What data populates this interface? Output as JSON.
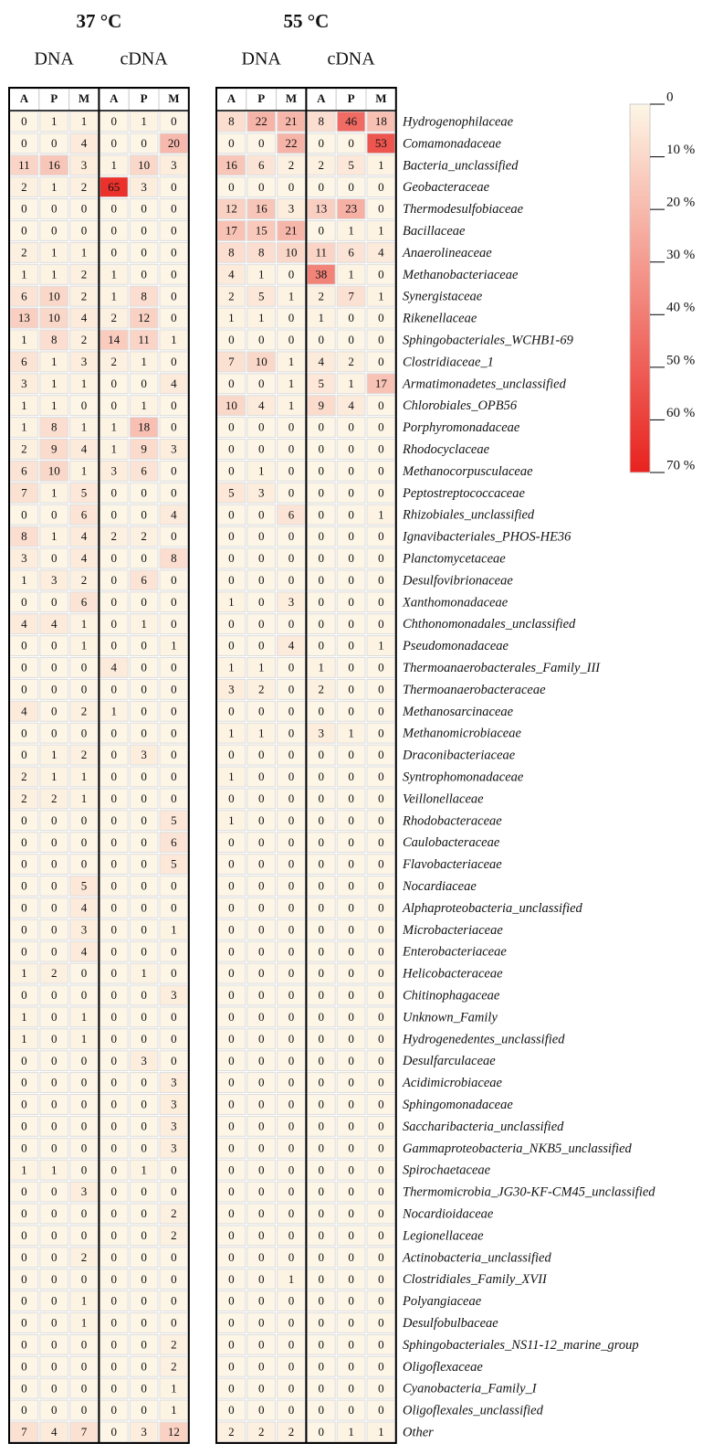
{
  "table": {
    "conditions": [
      "37 °C",
      "55 °C"
    ],
    "groups": [
      "DNA",
      "cDNA",
      "DNA",
      "cDNA"
    ],
    "column_headers": [
      "A",
      "P",
      "M",
      "A",
      "P",
      "M"
    ],
    "rows": [
      {
        "name": "Hydrogenophilaceae",
        "v37": [
          0,
          1,
          1,
          0,
          1,
          0
        ],
        "v55": [
          8,
          22,
          21,
          8,
          46,
          18
        ]
      },
      {
        "name": "Comamonadaceae",
        "v37": [
          0,
          0,
          4,
          0,
          0,
          20
        ],
        "v55": [
          0,
          0,
          22,
          0,
          0,
          53
        ]
      },
      {
        "name": "Bacteria_unclassified",
        "v37": [
          11,
          16,
          3,
          1,
          10,
          3
        ],
        "v55": [
          16,
          6,
          2,
          2,
          5,
          1
        ]
      },
      {
        "name": "Geobacteraceae",
        "v37": [
          2,
          1,
          2,
          65,
          3,
          0
        ],
        "v55": [
          0,
          0,
          0,
          0,
          0,
          0
        ]
      },
      {
        "name": "Thermodesulfobiaceae",
        "v37": [
          0,
          0,
          0,
          0,
          0,
          0
        ],
        "v55": [
          12,
          16,
          3,
          13,
          23,
          0
        ]
      },
      {
        "name": "Bacillaceae",
        "v37": [
          0,
          0,
          0,
          0,
          0,
          0
        ],
        "v55": [
          17,
          15,
          21,
          0,
          1,
          1
        ]
      },
      {
        "name": "Anaerolineaceae",
        "v37": [
          2,
          1,
          1,
          0,
          0,
          0
        ],
        "v55": [
          8,
          8,
          10,
          11,
          6,
          4
        ]
      },
      {
        "name": "Methanobacteriaceae",
        "v37": [
          1,
          1,
          2,
          1,
          0,
          0
        ],
        "v55": [
          4,
          1,
          0,
          38,
          1,
          0
        ]
      },
      {
        "name": "Synergistaceae",
        "v37": [
          6,
          10,
          2,
          1,
          8,
          0
        ],
        "v55": [
          2,
          5,
          1,
          2,
          7,
          1
        ]
      },
      {
        "name": "Rikenellaceae",
        "v37": [
          13,
          10,
          4,
          2,
          12,
          0
        ],
        "v55": [
          1,
          1,
          0,
          1,
          0,
          0
        ]
      },
      {
        "name": "Sphingobacteriales_WCHB1-69",
        "v37": [
          1,
          8,
          2,
          14,
          11,
          1
        ],
        "v55": [
          0,
          0,
          0,
          0,
          0,
          0
        ]
      },
      {
        "name": "Clostridiaceae_1",
        "v37": [
          6,
          1,
          3,
          2,
          1,
          0
        ],
        "v55": [
          7,
          10,
          1,
          4,
          2,
          0
        ]
      },
      {
        "name": "Armatimonadetes_unclassified",
        "v37": [
          3,
          1,
          1,
          0,
          0,
          4
        ],
        "v55": [
          0,
          0,
          1,
          5,
          1,
          17
        ]
      },
      {
        "name": "Chlorobiales_OPB56",
        "v37": [
          1,
          1,
          0,
          0,
          1,
          0
        ],
        "v55": [
          10,
          4,
          1,
          9,
          4,
          0
        ]
      },
      {
        "name": "Porphyromonadaceae",
        "v37": [
          1,
          8,
          1,
          1,
          18,
          0
        ],
        "v55": [
          0,
          0,
          0,
          0,
          0,
          0
        ]
      },
      {
        "name": "Rhodocyclaceae",
        "v37": [
          2,
          9,
          4,
          1,
          9,
          3
        ],
        "v55": [
          0,
          0,
          0,
          0,
          0,
          0
        ]
      },
      {
        "name": "Methanocorpusculaceae",
        "v37": [
          6,
          10,
          1,
          3,
          6,
          0
        ],
        "v55": [
          0,
          1,
          0,
          0,
          0,
          0
        ]
      },
      {
        "name": "Peptostreptococcaceae",
        "v37": [
          7,
          1,
          5,
          0,
          0,
          0
        ],
        "v55": [
          5,
          3,
          0,
          0,
          0,
          0
        ]
      },
      {
        "name": "Rhizobiales_unclassified",
        "v37": [
          0,
          0,
          6,
          0,
          0,
          4
        ],
        "v55": [
          0,
          0,
          6,
          0,
          0,
          1
        ]
      },
      {
        "name": "Ignavibacteriales_PHOS-HE36",
        "v37": [
          8,
          1,
          4,
          2,
          2,
          0
        ],
        "v55": [
          0,
          0,
          0,
          0,
          0,
          0
        ]
      },
      {
        "name": "Planctomycetaceae",
        "v37": [
          3,
          0,
          4,
          0,
          0,
          8
        ],
        "v55": [
          0,
          0,
          0,
          0,
          0,
          0
        ]
      },
      {
        "name": "Desulfovibrionaceae",
        "v37": [
          1,
          3,
          2,
          0,
          6,
          0
        ],
        "v55": [
          0,
          0,
          0,
          0,
          0,
          0
        ]
      },
      {
        "name": "Xanthomonadaceae",
        "v37": [
          0,
          0,
          6,
          0,
          0,
          0
        ],
        "v55": [
          1,
          0,
          3,
          0,
          0,
          0
        ]
      },
      {
        "name": "Chthonomonadales_unclassified",
        "v37": [
          4,
          4,
          1,
          0,
          1,
          0
        ],
        "v55": [
          0,
          0,
          0,
          0,
          0,
          0
        ]
      },
      {
        "name": "Pseudomonadaceae",
        "v37": [
          0,
          0,
          1,
          0,
          0,
          1
        ],
        "v55": [
          0,
          0,
          4,
          0,
          0,
          1
        ]
      },
      {
        "name": "Thermoanaerobacterales_Family_III",
        "v37": [
          0,
          0,
          0,
          4,
          0,
          0
        ],
        "v55": [
          1,
          1,
          0,
          1,
          0,
          0
        ]
      },
      {
        "name": "Thermoanaerobacteraceae",
        "v37": [
          0,
          0,
          0,
          0,
          0,
          0
        ],
        "v55": [
          3,
          2,
          0,
          2,
          0,
          0
        ]
      },
      {
        "name": "Methanosarcinaceae",
        "v37": [
          4,
          0,
          2,
          1,
          0,
          0
        ],
        "v55": [
          0,
          0,
          0,
          0,
          0,
          0
        ]
      },
      {
        "name": "Methanomicrobiaceae",
        "v37": [
          0,
          0,
          0,
          0,
          0,
          0
        ],
        "v55": [
          1,
          1,
          0,
          3,
          1,
          0
        ]
      },
      {
        "name": "Draconibacteriaceae",
        "v37": [
          0,
          1,
          2,
          0,
          3,
          0
        ],
        "v55": [
          0,
          0,
          0,
          0,
          0,
          0
        ]
      },
      {
        "name": "Syntrophomonadaceae",
        "v37": [
          2,
          1,
          1,
          0,
          0,
          0
        ],
        "v55": [
          1,
          0,
          0,
          0,
          0,
          0
        ]
      },
      {
        "name": "Veillonellaceae",
        "v37": [
          2,
          2,
          1,
          0,
          0,
          0
        ],
        "v55": [
          0,
          0,
          0,
          0,
          0,
          0
        ]
      },
      {
        "name": "Rhodobacteraceae",
        "v37": [
          0,
          0,
          0,
          0,
          0,
          5
        ],
        "v55": [
          1,
          0,
          0,
          0,
          0,
          0
        ]
      },
      {
        "name": "Caulobacteraceae",
        "v37": [
          0,
          0,
          0,
          0,
          0,
          6
        ],
        "v55": [
          0,
          0,
          0,
          0,
          0,
          0
        ]
      },
      {
        "name": "Flavobacteriaceae",
        "v37": [
          0,
          0,
          0,
          0,
          0,
          5
        ],
        "v55": [
          0,
          0,
          0,
          0,
          0,
          0
        ]
      },
      {
        "name": "Nocardiaceae",
        "v37": [
          0,
          0,
          5,
          0,
          0,
          0
        ],
        "v55": [
          0,
          0,
          0,
          0,
          0,
          0
        ]
      },
      {
        "name": "Alphaproteobacteria_unclassified",
        "v37": [
          0,
          0,
          4,
          0,
          0,
          0
        ],
        "v55": [
          0,
          0,
          0,
          0,
          0,
          0
        ]
      },
      {
        "name": "Microbacteriaceae",
        "v37": [
          0,
          0,
          3,
          0,
          0,
          1
        ],
        "v55": [
          0,
          0,
          0,
          0,
          0,
          0
        ]
      },
      {
        "name": "Enterobacteriaceae",
        "v37": [
          0,
          0,
          4,
          0,
          0,
          0
        ],
        "v55": [
          0,
          0,
          0,
          0,
          0,
          0
        ]
      },
      {
        "name": "Helicobacteraceae",
        "v37": [
          1,
          2,
          0,
          0,
          1,
          0
        ],
        "v55": [
          0,
          0,
          0,
          0,
          0,
          0
        ]
      },
      {
        "name": "Chitinophagaceae",
        "v37": [
          0,
          0,
          0,
          0,
          0,
          3
        ],
        "v55": [
          0,
          0,
          0,
          0,
          0,
          0
        ]
      },
      {
        "name": "Unknown_Family",
        "v37": [
          1,
          0,
          1,
          0,
          0,
          0
        ],
        "v55": [
          0,
          0,
          0,
          0,
          0,
          0
        ]
      },
      {
        "name": "Hydrogenedentes_unclassified",
        "v37": [
          1,
          0,
          1,
          0,
          0,
          0
        ],
        "v55": [
          0,
          0,
          0,
          0,
          0,
          0
        ]
      },
      {
        "name": "Desulfarculaceae",
        "v37": [
          0,
          0,
          0,
          0,
          3,
          0
        ],
        "v55": [
          0,
          0,
          0,
          0,
          0,
          0
        ]
      },
      {
        "name": "Acidimicrobiaceae",
        "v37": [
          0,
          0,
          0,
          0,
          0,
          3
        ],
        "v55": [
          0,
          0,
          0,
          0,
          0,
          0
        ]
      },
      {
        "name": "Sphingomonadaceae",
        "v37": [
          0,
          0,
          0,
          0,
          0,
          3
        ],
        "v55": [
          0,
          0,
          0,
          0,
          0,
          0
        ]
      },
      {
        "name": "Saccharibacteria_unclassified",
        "v37": [
          0,
          0,
          0,
          0,
          0,
          3
        ],
        "v55": [
          0,
          0,
          0,
          0,
          0,
          0
        ]
      },
      {
        "name": "Gammaproteobacteria_NKB5_unclassified",
        "v37": [
          0,
          0,
          0,
          0,
          0,
          3
        ],
        "v55": [
          0,
          0,
          0,
          0,
          0,
          0
        ]
      },
      {
        "name": "Spirochaetaceae",
        "v37": [
          1,
          1,
          0,
          0,
          1,
          0
        ],
        "v55": [
          0,
          0,
          0,
          0,
          0,
          0
        ]
      },
      {
        "name": "Thermomicrobia_JG30-KF-CM45_unclassified",
        "v37": [
          0,
          0,
          3,
          0,
          0,
          0
        ],
        "v55": [
          0,
          0,
          0,
          0,
          0,
          0
        ]
      },
      {
        "name": "Nocardioidaceae",
        "v37": [
          0,
          0,
          0,
          0,
          0,
          2
        ],
        "v55": [
          0,
          0,
          0,
          0,
          0,
          0
        ]
      },
      {
        "name": "Legionellaceae",
        "v37": [
          0,
          0,
          0,
          0,
          0,
          2
        ],
        "v55": [
          0,
          0,
          0,
          0,
          0,
          0
        ]
      },
      {
        "name": "Actinobacteria_unclassified",
        "v37": [
          0,
          0,
          2,
          0,
          0,
          0
        ],
        "v55": [
          0,
          0,
          0,
          0,
          0,
          0
        ]
      },
      {
        "name": "Clostridiales_Family_XVII",
        "v37": [
          0,
          0,
          0,
          0,
          0,
          0
        ],
        "v55": [
          0,
          0,
          1,
          0,
          0,
          0
        ]
      },
      {
        "name": "Polyangiaceae",
        "v37": [
          0,
          0,
          1,
          0,
          0,
          0
        ],
        "v55": [
          0,
          0,
          0,
          0,
          0,
          0
        ]
      },
      {
        "name": "Desulfobulbaceae",
        "v37": [
          0,
          0,
          1,
          0,
          0,
          0
        ],
        "v55": [
          0,
          0,
          0,
          0,
          0,
          0
        ]
      },
      {
        "name": "Sphingobacteriales_NS11-12_marine_group",
        "v37": [
          0,
          0,
          0,
          0,
          0,
          2
        ],
        "v55": [
          0,
          0,
          0,
          0,
          0,
          0
        ]
      },
      {
        "name": "Oligoflexaceae",
        "v37": [
          0,
          0,
          0,
          0,
          0,
          2
        ],
        "v55": [
          0,
          0,
          0,
          0,
          0,
          0
        ]
      },
      {
        "name": "Cyanobacteria_Family_I",
        "v37": [
          0,
          0,
          0,
          0,
          0,
          1
        ],
        "v55": [
          0,
          0,
          0,
          0,
          0,
          0
        ]
      },
      {
        "name": "Oligoflexales_unclassified",
        "v37": [
          0,
          0,
          0,
          0,
          0,
          1
        ],
        "v55": [
          0,
          0,
          0,
          0,
          0,
          0
        ]
      },
      {
        "name": "Other",
        "v37": [
          7,
          4,
          7,
          0,
          3,
          12
        ],
        "v55": [
          2,
          2,
          2,
          0,
          1,
          1
        ]
      }
    ]
  },
  "colorbar": {
    "min": 0,
    "max": 70,
    "low_color": "#fdf6e6",
    "high_color": "#e8221e",
    "ticks": [
      0,
      {
        "value": 10,
        "label": "10 %"
      },
      {
        "value": 20,
        "label": "20 %"
      },
      {
        "value": 30,
        "label": "30 %"
      },
      {
        "value": 40,
        "label": "40 %"
      },
      {
        "value": 50,
        "label": "50 %"
      },
      {
        "value": 60,
        "label": "60 %"
      },
      {
        "value": 70,
        "label": "70 %"
      }
    ]
  }
}
